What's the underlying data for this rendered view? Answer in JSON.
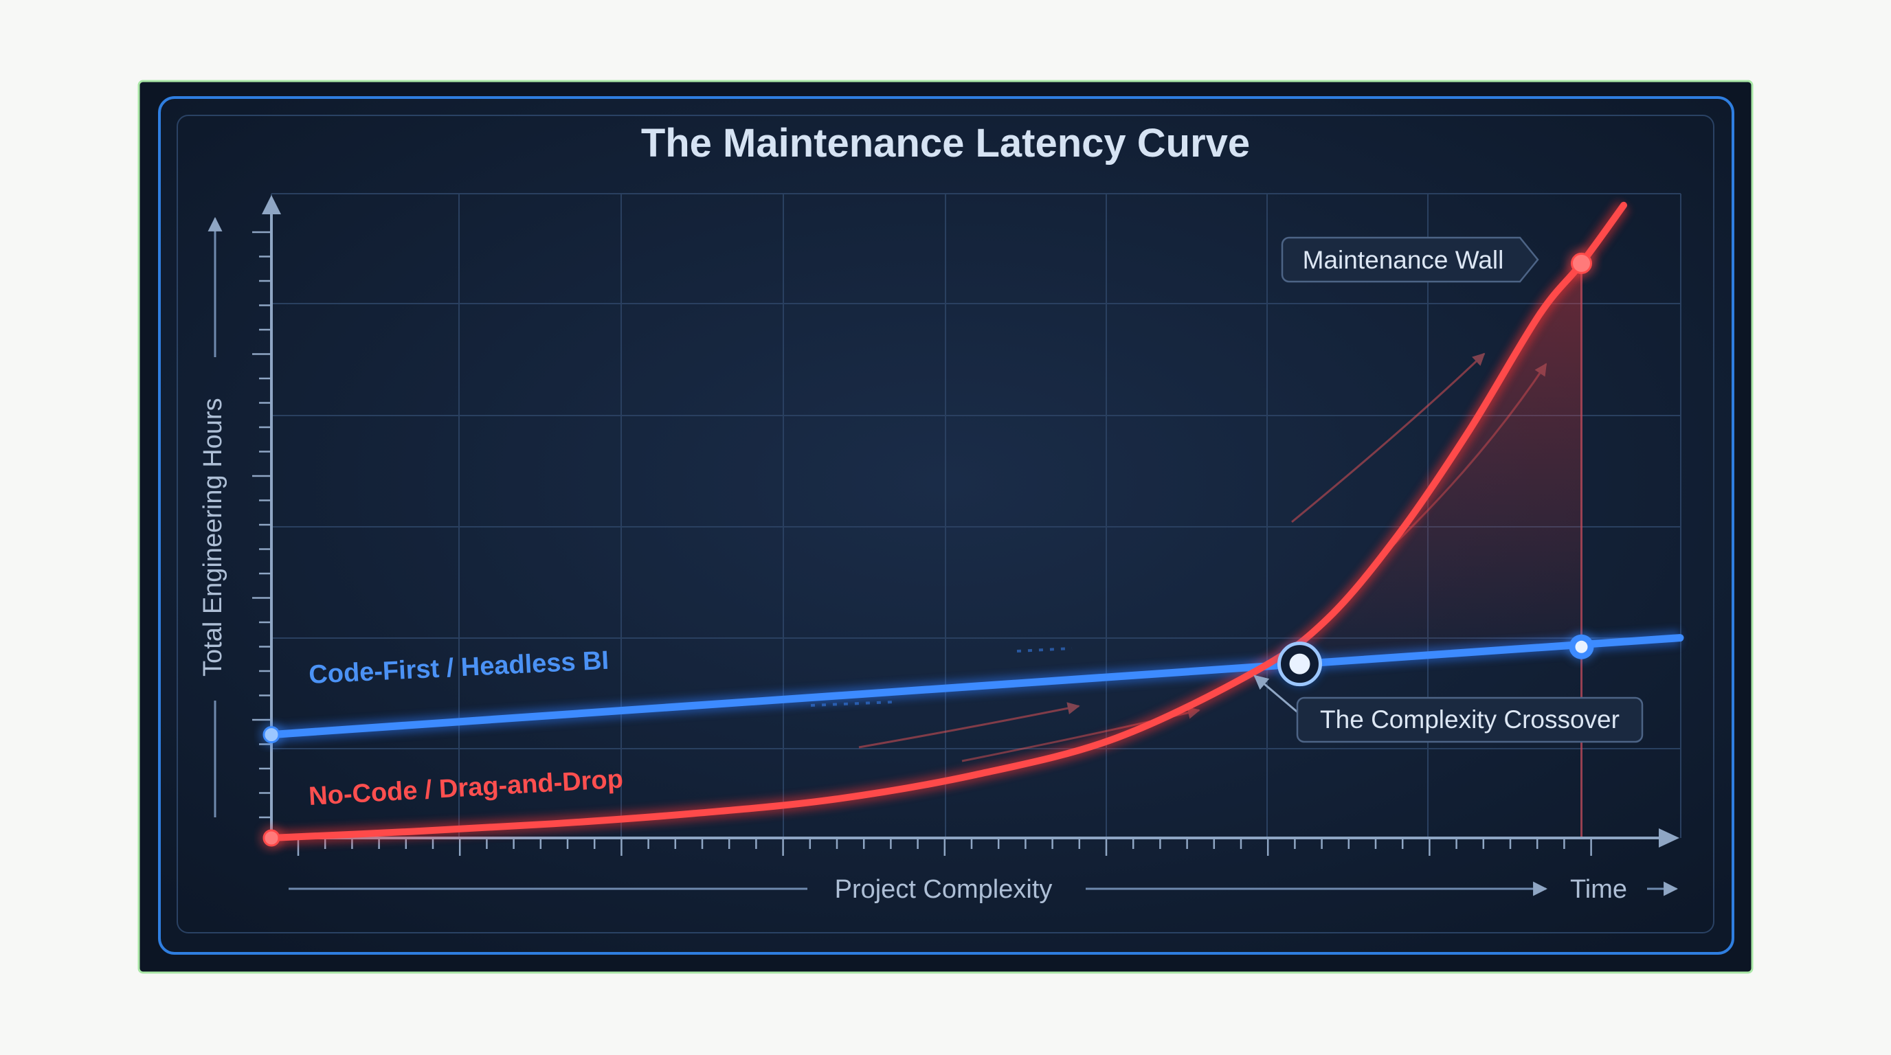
{
  "chart_data": {
    "type": "line",
    "title": "The Maintenance Latency Curve",
    "xlabel": "Project Complexity",
    "x_secondary_label": "Time",
    "ylabel": "Total Engineering Hours",
    "xlim": [
      0,
      10
    ],
    "ylim": [
      0,
      10
    ],
    "grid": true,
    "series": [
      {
        "name": "Code-First / Headless BI",
        "color": "#3d8bff",
        "x": [
          0,
          10
        ],
        "y": [
          1.6,
          3.1
        ],
        "markers": [
          [
            0,
            1.6
          ],
          [
            9.3,
            2.96
          ]
        ]
      },
      {
        "name": "No-Code / Drag-and-Drop",
        "color": "#ff4a4a",
        "x": [
          0,
          1,
          2,
          3,
          4,
          5,
          6,
          7,
          7.5,
          8,
          8.5,
          9,
          9.3,
          9.6
        ],
        "y": [
          0,
          0.1,
          0.22,
          0.38,
          0.6,
          0.98,
          1.55,
          2.6,
          3.4,
          4.7,
          6.3,
          8.1,
          8.9,
          9.8
        ],
        "markers": [
          [
            0,
            0
          ],
          [
            9.3,
            8.9
          ]
        ]
      }
    ],
    "annotations": [
      {
        "text": "Maintenance Wall",
        "x": 9.3,
        "y": 8.9
      },
      {
        "text": "The Complexity Crossover",
        "x": 7.3,
        "y": 2.7
      }
    ]
  }
}
